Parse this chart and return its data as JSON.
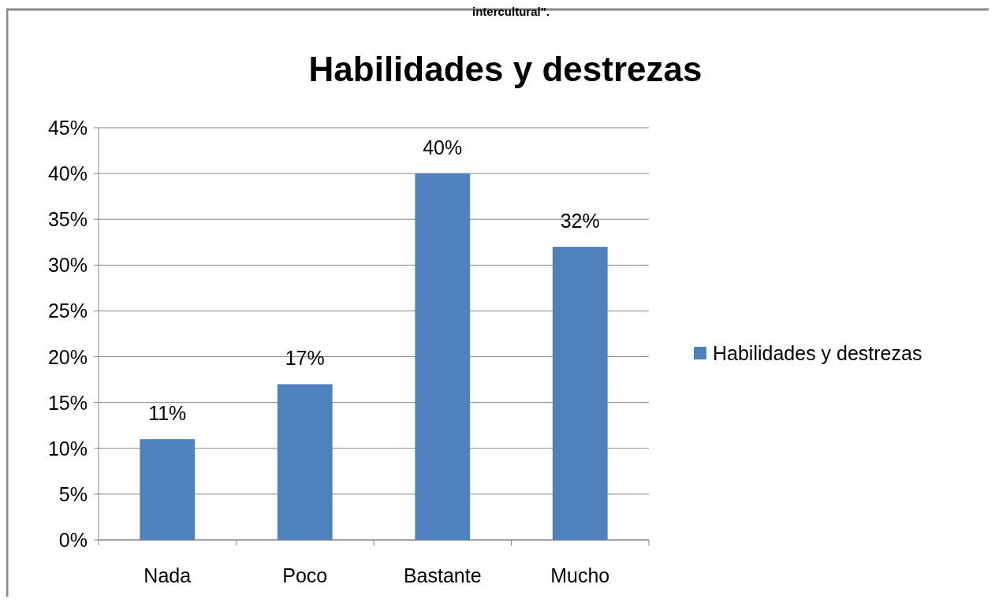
{
  "chart_data": {
    "type": "bar",
    "title": "Habilidades y destrezas",
    "annotations": [
      "intercultural\"."
    ],
    "categories": [
      "Nada",
      "Poco",
      "Bastante",
      "Mucho"
    ],
    "series": [
      {
        "name": "Habilidades y destrezas",
        "color": "#4f81bd",
        "values": [
          11,
          17,
          40,
          32
        ]
      }
    ],
    "ylim": [
      0,
      45
    ],
    "yticks": [
      {
        "value": 0,
        "label": "0%"
      },
      {
        "value": 5,
        "label": "5%"
      },
      {
        "value": 10,
        "label": "10%"
      },
      {
        "value": 15,
        "label": "15%"
      },
      {
        "value": 20,
        "label": "20%"
      },
      {
        "value": 25,
        "label": "25%"
      },
      {
        "value": 30,
        "label": "30%"
      },
      {
        "value": 35,
        "label": "35%"
      },
      {
        "value": 40,
        "label": "40%"
      },
      {
        "value": 45,
        "label": "45%"
      }
    ],
    "value_labels": [
      "11%",
      "17%",
      "40%",
      "32%"
    ],
    "grid": "y",
    "legend": "right"
  }
}
